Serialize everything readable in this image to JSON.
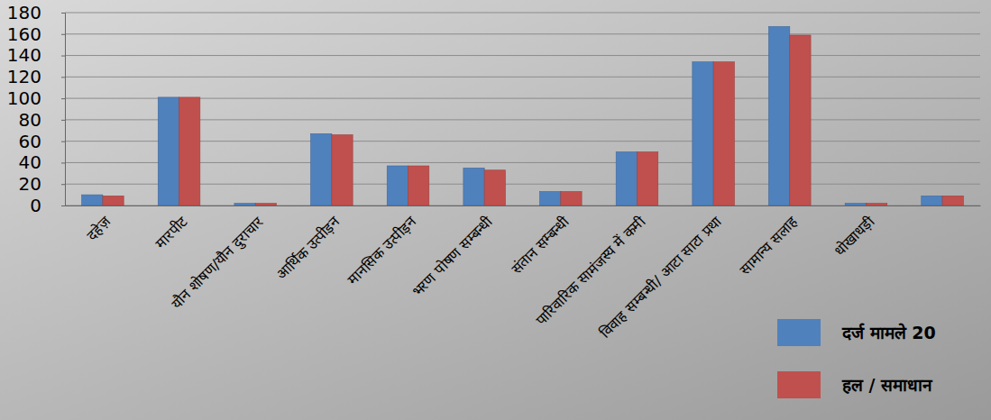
{
  "chart_data": {
    "type": "bar",
    "categories": [
      "दहेज़",
      "मारपीट",
      "यौन शोषण/यौन दुराचार",
      "आर्थिक उत्पीड़न",
      "मानसिक उत्पीड़न",
      "भरण पोषण सम्बन्धी",
      "संतान सम्बन्धी",
      "पारिवारिक सामंजस्य में कमी",
      "विवाह सम्बन्धी/ आटा साटा प्रथा",
      "सामान्य सलाह",
      "धोखाधड़ी",
      null
    ],
    "series": [
      {
        "name": "दर्ज मामले 20",
        "color": "#4f81bd",
        "values": [
          10,
          101,
          2,
          67,
          37,
          35,
          13,
          50,
          134,
          167,
          2,
          9
        ]
      },
      {
        "name": "हल / समाधान",
        "color": "#c0504d",
        "values": [
          9,
          101,
          2,
          66,
          37,
          33,
          13,
          50,
          134,
          159,
          2,
          9
        ]
      }
    ],
    "ylim": [
      0,
      180
    ],
    "yticks": [
      0,
      20,
      40,
      60,
      80,
      100,
      120,
      140,
      160,
      180
    ],
    "grid": true,
    "legend": "bottom-right"
  }
}
